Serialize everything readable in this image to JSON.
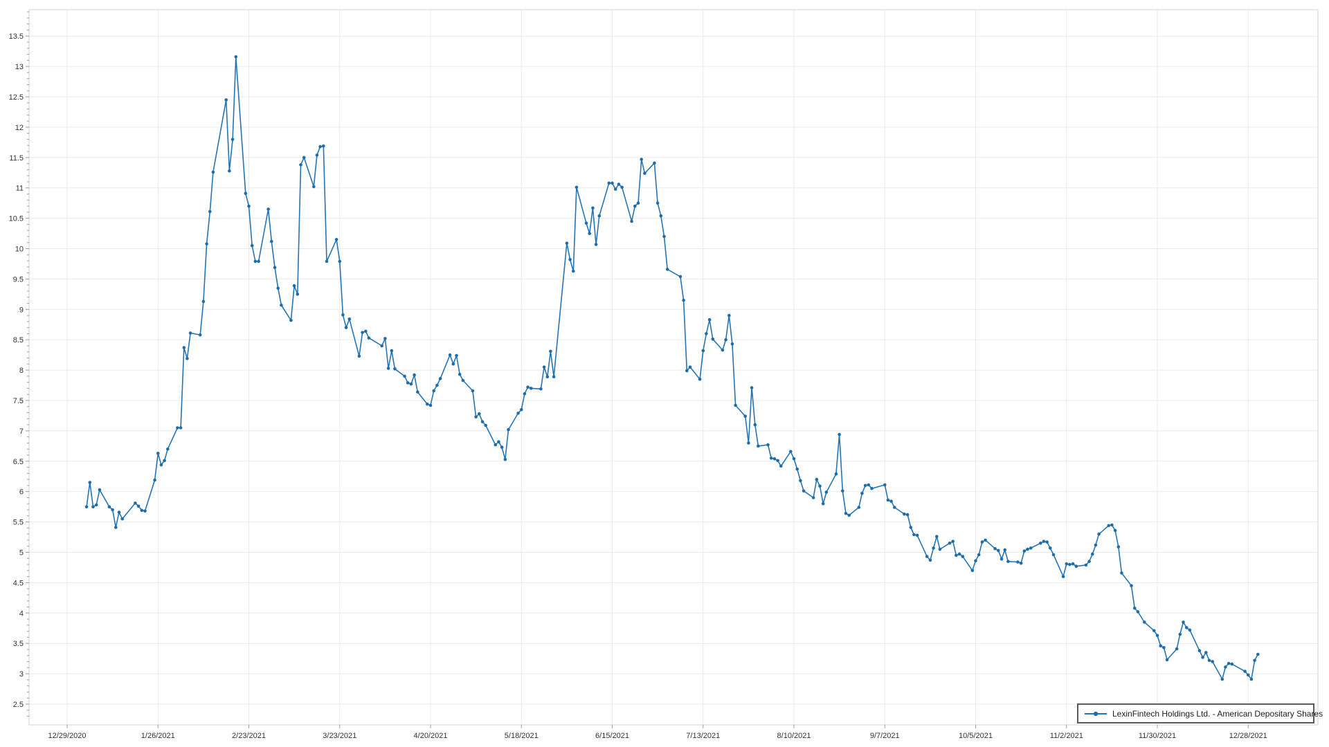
{
  "legend": {
    "label": "LexinFintech Holdings Ltd. - American Depositary Shares"
  },
  "chart_data": {
    "type": "line",
    "title": "",
    "xlabel": "",
    "ylabel": "",
    "grid": true,
    "legend_position": "bottom-right-inside",
    "line_color": "#2374b5",
    "marker_color": "#1d6da9",
    "grid_color": "#e9e9e9",
    "axis_border_color": "#d2d2d2",
    "tick_color": "#9a9a9a",
    "label_color": "#303030",
    "x_axis_start_date": "12/29/2020",
    "x_tick_interval_days": 28,
    "x_tick_labels": [
      "12/29/2020",
      "1/26/2021",
      "2/23/2021",
      "3/23/2021",
      "4/20/2021",
      "5/18/2021",
      "6/15/2021",
      "7/13/2021",
      "8/10/2021",
      "9/7/2021",
      "10/5/2021",
      "11/2/2021",
      "11/30/2021",
      "12/28/2021"
    ],
    "y_ticks": [
      2.5,
      3,
      3.5,
      4,
      4.5,
      5,
      5.5,
      6,
      6.5,
      7,
      7.5,
      8,
      8.5,
      9,
      9.5,
      10,
      10.5,
      11,
      11.5,
      12,
      12.5,
      13,
      13.5
    ],
    "ylim": [
      2.16,
      13.93
    ],
    "series": [
      {
        "name": "LexinFintech Holdings Ltd. - American Depositary Shares",
        "dates": [
          "1/4/2021",
          "1/5/2021",
          "1/6/2021",
          "1/7/2021",
          "1/8/2021",
          "1/11/2021",
          "1/12/2021",
          "1/13/2021",
          "1/14/2021",
          "1/15/2021",
          "1/19/2021",
          "1/20/2021",
          "1/21/2021",
          "1/22/2021",
          "1/25/2021",
          "1/26/2021",
          "1/27/2021",
          "1/28/2021",
          "1/29/2021",
          "2/1/2021",
          "2/2/2021",
          "2/3/2021",
          "2/4/2021",
          "2/5/2021",
          "2/8/2021",
          "2/9/2021",
          "2/10/2021",
          "2/11/2021",
          "2/12/2021",
          "2/16/2021",
          "2/17/2021",
          "2/18/2021",
          "2/19/2021",
          "2/22/2021",
          "2/23/2021",
          "2/24/2021",
          "2/25/2021",
          "2/26/2021",
          "3/1/2021",
          "3/2/2021",
          "3/3/2021",
          "3/4/2021",
          "3/5/2021",
          "3/8/2021",
          "3/9/2021",
          "3/10/2021",
          "3/11/2021",
          "3/12/2021",
          "3/15/2021",
          "3/16/2021",
          "3/17/2021",
          "3/18/2021",
          "3/19/2021",
          "3/22/2021",
          "3/23/2021",
          "3/24/2021",
          "3/25/2021",
          "3/26/2021",
          "3/29/2021",
          "3/30/2021",
          "3/31/2021",
          "4/1/2021",
          "4/5/2021",
          "4/6/2021",
          "4/7/2021",
          "4/8/2021",
          "4/9/2021",
          "4/12/2021",
          "4/13/2021",
          "4/14/2021",
          "4/15/2021",
          "4/16/2021",
          "4/19/2021",
          "4/20/2021",
          "4/21/2021",
          "4/22/2021",
          "4/23/2021",
          "4/26/2021",
          "4/27/2021",
          "4/28/2021",
          "4/29/2021",
          "4/30/2021",
          "5/3/2021",
          "5/4/2021",
          "5/5/2021",
          "5/6/2021",
          "5/7/2021",
          "5/10/2021",
          "5/11/2021",
          "5/12/2021",
          "5/13/2021",
          "5/14/2021",
          "5/17/2021",
          "5/18/2021",
          "5/19/2021",
          "5/20/2021",
          "5/21/2021",
          "5/24/2021",
          "5/25/2021",
          "5/26/2021",
          "5/27/2021",
          "5/28/2021",
          "6/1/2021",
          "6/2/2021",
          "6/3/2021",
          "6/4/2021",
          "6/7/2021",
          "6/8/2021",
          "6/9/2021",
          "6/10/2021",
          "6/11/2021",
          "6/14/2021",
          "6/15/2021",
          "6/16/2021",
          "6/17/2021",
          "6/18/2021",
          "6/21/2021",
          "6/22/2021",
          "6/23/2021",
          "6/24/2021",
          "6/25/2021",
          "6/28/2021",
          "6/29/2021",
          "6/30/2021",
          "7/1/2021",
          "7/2/2021",
          "7/6/2021",
          "7/7/2021",
          "7/8/2021",
          "7/9/2021",
          "7/12/2021",
          "7/13/2021",
          "7/14/2021",
          "7/15/2021",
          "7/16/2021",
          "7/19/2021",
          "7/20/2021",
          "7/21/2021",
          "7/22/2021",
          "7/23/2021",
          "7/26/2021",
          "7/27/2021",
          "7/28/2021",
          "7/29/2021",
          "7/30/2021",
          "8/2/2021",
          "8/3/2021",
          "8/4/2021",
          "8/5/2021",
          "8/6/2021",
          "8/9/2021",
          "8/10/2021",
          "8/11/2021",
          "8/12/2021",
          "8/13/2021",
          "8/16/2021",
          "8/17/2021",
          "8/18/2021",
          "8/19/2021",
          "8/20/2021",
          "8/23/2021",
          "8/24/2021",
          "8/25/2021",
          "8/26/2021",
          "8/27/2021",
          "8/30/2021",
          "8/31/2021",
          "9/1/2021",
          "9/2/2021",
          "9/3/2021",
          "9/7/2021",
          "9/8/2021",
          "9/9/2021",
          "9/10/2021",
          "9/13/2021",
          "9/14/2021",
          "9/15/2021",
          "9/16/2021",
          "9/17/2021",
          "9/20/2021",
          "9/21/2021",
          "9/22/2021",
          "9/23/2021",
          "9/24/2021",
          "9/27/2021",
          "9/28/2021",
          "9/29/2021",
          "9/30/2021",
          "10/1/2021",
          "10/4/2021",
          "10/5/2021",
          "10/6/2021",
          "10/7/2021",
          "10/8/2021",
          "10/11/2021",
          "10/12/2021",
          "10/13/2021",
          "10/14/2021",
          "10/15/2021",
          "10/18/2021",
          "10/19/2021",
          "10/20/2021",
          "10/21/2021",
          "10/22/2021",
          "10/25/2021",
          "10/26/2021",
          "10/27/2021",
          "10/28/2021",
          "10/29/2021",
          "11/1/2021",
          "11/2/2021",
          "11/3/2021",
          "11/4/2021",
          "11/5/2021",
          "11/8/2021",
          "11/9/2021",
          "11/10/2021",
          "11/11/2021",
          "11/12/2021",
          "11/15/2021",
          "11/16/2021",
          "11/17/2021",
          "11/18/2021",
          "11/19/2021",
          "11/22/2021",
          "11/23/2021",
          "11/24/2021",
          "11/26/2021",
          "11/29/2021",
          "11/30/2021",
          "12/1/2021",
          "12/2/2021",
          "12/3/2021",
          "12/6/2021",
          "12/7/2021",
          "12/8/2021",
          "12/9/2021",
          "12/10/2021",
          "12/13/2021",
          "12/14/2021",
          "12/15/2021",
          "12/16/2021",
          "12/17/2021",
          "12/20/2021",
          "12/21/2021",
          "12/22/2021",
          "12/23/2021",
          "12/27/2021",
          "12/28/2021",
          "12/29/2021",
          "12/30/2021",
          "12/31/2021"
        ],
        "values": [
          5.75,
          6.15,
          5.75,
          5.78,
          6.03,
          5.75,
          5.7,
          5.41,
          5.66,
          5.55,
          5.81,
          5.76,
          5.69,
          5.68,
          6.19,
          6.63,
          6.44,
          6.51,
          6.7,
          7.05,
          7.05,
          8.37,
          8.19,
          8.61,
          8.58,
          9.13,
          10.08,
          10.61,
          11.26,
          12.45,
          11.28,
          11.8,
          13.16,
          10.91,
          10.7,
          10.05,
          9.79,
          9.79,
          10.65,
          10.12,
          9.69,
          9.35,
          9.07,
          8.82,
          9.39,
          9.25,
          11.38,
          11.5,
          11.02,
          11.54,
          11.68,
          11.69,
          9.79,
          10.15,
          9.79,
          8.91,
          8.7,
          8.84,
          8.23,
          8.62,
          8.64,
          8.53,
          8.4,
          8.52,
          8.03,
          8.32,
          8.02,
          7.9,
          7.79,
          7.77,
          7.92,
          7.64,
          7.44,
          7.42,
          7.66,
          7.75,
          7.86,
          8.25,
          8.1,
          8.24,
          7.93,
          7.83,
          7.66,
          7.23,
          7.28,
          7.15,
          7.09,
          6.77,
          6.82,
          6.73,
          6.53,
          7.02,
          7.29,
          7.35,
          7.61,
          7.72,
          7.7,
          7.69,
          8.05,
          7.89,
          8.31,
          7.89,
          10.09,
          9.82,
          9.63,
          11.01,
          10.42,
          10.25,
          10.67,
          10.07,
          10.54,
          11.08,
          11.08,
          10.98,
          11.06,
          11.01,
          10.45,
          10.7,
          10.75,
          11.47,
          11.24,
          11.41,
          10.75,
          10.54,
          10.2,
          9.66,
          9.54,
          9.15,
          7.99,
          8.05,
          7.85,
          8.32,
          8.6,
          8.83,
          8.51,
          8.33,
          8.5,
          8.9,
          8.43,
          7.42,
          7.24,
          6.8,
          7.71,
          7.1,
          6.75,
          6.77,
          6.55,
          6.54,
          6.51,
          6.42,
          6.66,
          6.54,
          6.37,
          6.18,
          6.01,
          5.9,
          6.2,
          6.09,
          5.8,
          5.99,
          6.29,
          6.94,
          6.01,
          5.64,
          5.61,
          5.74,
          5.97,
          6.1,
          6.11,
          6.05,
          6.11,
          5.86,
          5.84,
          5.74,
          5.63,
          5.62,
          5.41,
          5.29,
          5.28,
          4.93,
          4.87,
          5.07,
          5.26,
          5.05,
          5.15,
          5.18,
          4.95,
          4.97,
          4.93,
          4.7,
          4.86,
          4.96,
          5.17,
          5.2,
          5.06,
          5.03,
          4.89,
          5.04,
          4.85,
          4.84,
          4.82,
          5.02,
          5.05,
          5.07,
          5.15,
          5.18,
          5.17,
          5.07,
          4.96,
          4.6,
          4.81,
          4.8,
          4.81,
          4.77,
          4.79,
          4.85,
          4.97,
          5.12,
          5.3,
          5.44,
          5.45,
          5.36,
          5.09,
          4.66,
          4.45,
          4.08,
          4.02,
          3.85,
          3.71,
          3.63,
          3.46,
          3.43,
          3.23,
          3.41,
          3.65,
          3.85,
          3.76,
          3.72,
          3.38,
          3.27,
          3.35,
          3.22,
          3.2,
          2.91,
          3.11,
          3.17,
          3.16,
          3.04,
          2.98,
          2.91,
          3.22,
          3.32
        ]
      }
    ]
  }
}
